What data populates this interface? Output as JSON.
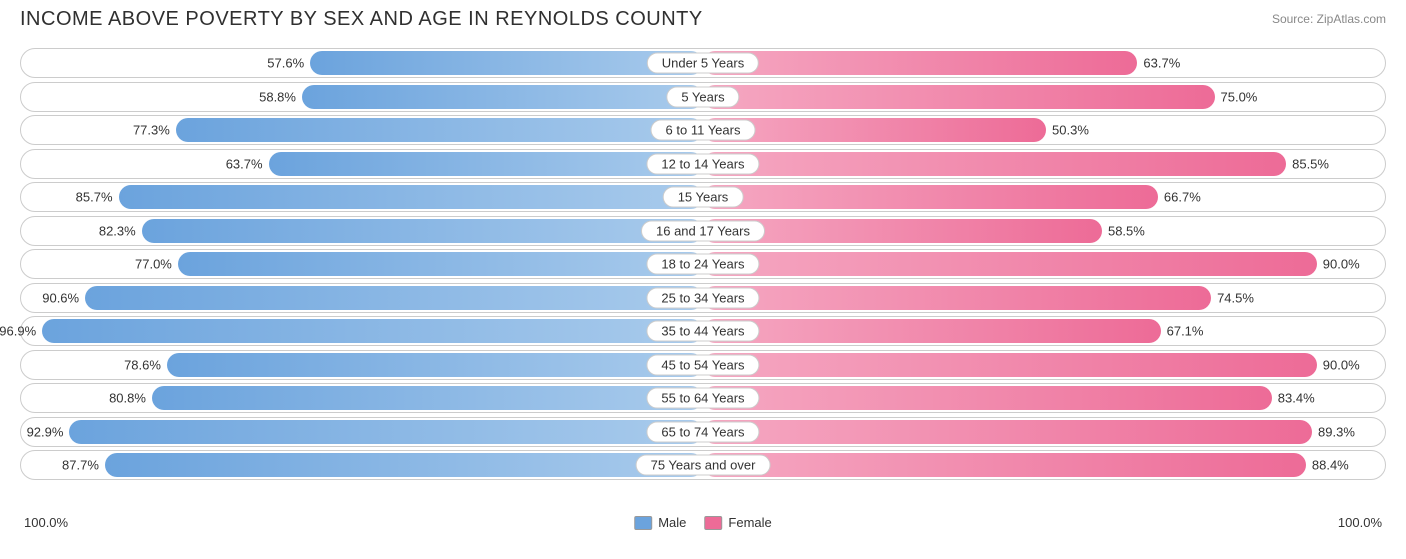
{
  "title": "INCOME ABOVE POVERTY BY SEX AND AGE IN REYNOLDS COUNTY",
  "source": "Source: ZipAtlas.com",
  "axis": {
    "left": "100.0%",
    "right": "100.0%"
  },
  "legend": {
    "male": {
      "label": "Male",
      "light": "#a9cbec",
      "dark": "#6ba3dd"
    },
    "female": {
      "label": "Female",
      "light": "#f5a8c2",
      "dark": "#ed6b97"
    }
  },
  "colors": {
    "row_border": "#cccccc",
    "text": "#333333",
    "title": "#303030",
    "source": "#888888",
    "background": "#ffffff"
  },
  "rows": [
    {
      "category": "Under 5 Years",
      "male": 57.6,
      "female": 63.7
    },
    {
      "category": "5 Years",
      "male": 58.8,
      "female": 75.0
    },
    {
      "category": "6 to 11 Years",
      "male": 77.3,
      "female": 50.3
    },
    {
      "category": "12 to 14 Years",
      "male": 63.7,
      "female": 85.5
    },
    {
      "category": "15 Years",
      "male": 85.7,
      "female": 66.7
    },
    {
      "category": "16 and 17 Years",
      "male": 82.3,
      "female": 58.5
    },
    {
      "category": "18 to 24 Years",
      "male": 77.0,
      "female": 90.0
    },
    {
      "category": "25 to 34 Years",
      "male": 90.6,
      "female": 74.5
    },
    {
      "category": "35 to 44 Years",
      "male": 96.9,
      "female": 67.1
    },
    {
      "category": "45 to 54 Years",
      "male": 78.6,
      "female": 90.0
    },
    {
      "category": "55 to 64 Years",
      "male": 80.8,
      "female": 83.4
    },
    {
      "category": "65 to 74 Years",
      "male": 92.9,
      "female": 89.3
    },
    {
      "category": "75 Years and over",
      "male": 87.7,
      "female": 88.4
    }
  ]
}
